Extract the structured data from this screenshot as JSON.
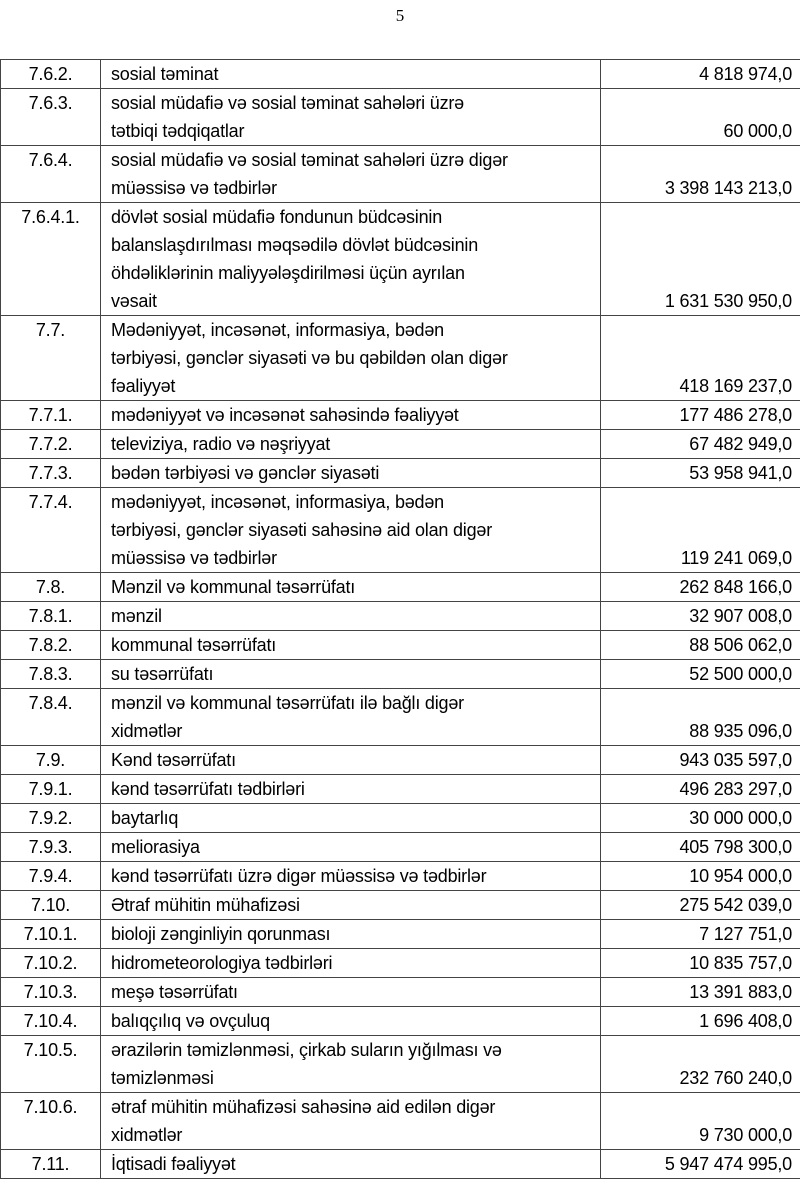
{
  "page_number": "5",
  "rows": [
    {
      "code": "7.6.2.",
      "text": "sosial təminat",
      "amount": "4 818 974,0"
    },
    {
      "code": "7.6.3.",
      "text": "sosial müdafiə və sosial təminat sahələri üzrə\ntətbiqi tədqiqatlar",
      "amount": "60 000,0"
    },
    {
      "code": "7.6.4.",
      "text": "sosial müdafiə və sosial təminat sahələri üzrə digər\nmüəssisə və tədbirlər",
      "amount": "3 398 143 213,0"
    },
    {
      "code": "7.6.4.1.",
      "text": "dövlət sosial müdafiə fondunun büdcəsinin\nbalanslaşdırılması məqsədilə dövlət büdcəsinin\nöhdəliklərinin maliyyələşdirilməsi üçün ayrılan\nvəsait",
      "amount": "1 631 530 950,0"
    },
    {
      "code": "7.7.",
      "text": "Mədəniyyət, incəsənət, informasiya, bədən\ntərbiyəsi, gənclər siyasəti və bu qəbildən olan digər\nfəaliyyət",
      "amount": "418 169 237,0"
    },
    {
      "code": "7.7.1.",
      "text": "mədəniyyət və incəsənət sahəsində fəaliyyət",
      "amount": "177 486 278,0"
    },
    {
      "code": "7.7.2.",
      "text": "televiziya, radio və nəşriyyat",
      "amount": "67 482 949,0"
    },
    {
      "code": "7.7.3.",
      "text": "bədən tərbiyəsi və gənclər siyasəti",
      "amount": "53 958 941,0"
    },
    {
      "code": "7.7.4.",
      "text": "mədəniyyət, incəsənət, informasiya, bədən\ntərbiyəsi, gənclər siyasəti sahəsinə aid olan digər\nmüəssisə və tədbirlər",
      "amount": "119 241 069,0"
    },
    {
      "code": "7.8.",
      "text": "Mənzil və kommunal təsərrüfatı",
      "amount": "262 848 166,0"
    },
    {
      "code": "7.8.1.",
      "text": "mənzil",
      "amount": "32 907 008,0"
    },
    {
      "code": "7.8.2.",
      "text": "kommunal təsərrüfatı",
      "amount": "88 506 062,0"
    },
    {
      "code": "7.8.3.",
      "text": "su təsərrüfatı",
      "amount": "52 500 000,0"
    },
    {
      "code": "7.8.4.",
      "text": "mənzil və kommunal təsərrüfatı ilə bağlı digər\nxidmətlər",
      "amount": "88 935 096,0"
    },
    {
      "code": "7.9.",
      "text": "Kənd təsərrüfatı",
      "amount": "943 035 597,0"
    },
    {
      "code": "7.9.1.",
      "text": "kənd təsərrüfatı tədbirləri",
      "amount": "496 283 297,0"
    },
    {
      "code": "7.9.2.",
      "text": "baytarlıq",
      "amount": "30 000 000,0"
    },
    {
      "code": "7.9.3.",
      "text": "meliorasiya",
      "amount": "405 798 300,0"
    },
    {
      "code": "7.9.4.",
      "text": "kənd təsərrüfatı üzrə digər müəssisə və tədbirlər",
      "amount": "10 954 000,0"
    },
    {
      "code": "7.10.",
      "text": "Ətraf mühitin mühafizəsi",
      "amount": "275 542 039,0"
    },
    {
      "code": "7.10.1.",
      "text": "bioloji zənginliyin qorunması",
      "amount": "7 127 751,0"
    },
    {
      "code": "7.10.2.",
      "text": "hidrometeorologiya tədbirləri",
      "amount": "10 835 757,0"
    },
    {
      "code": "7.10.3.",
      "text": "meşə təsərrüfatı",
      "amount": "13 391 883,0"
    },
    {
      "code": "7.10.4.",
      "text": "balıqçılıq və ovçuluq",
      "amount": "1 696 408,0"
    },
    {
      "code": "7.10.5.",
      "text": "ərazilərin təmizlənməsi, çirkab suların yığılması və\ntəmizlənməsi",
      "amount": "232 760 240,0"
    },
    {
      "code": "7.10.6.",
      "text": "ətraf mühitin mühafizəsi sahəsinə aid edilən digər\nxidmətlər",
      "amount": "9 730 000,0"
    },
    {
      "code": "7.11.",
      "text": "İqtisadi fəaliyyət",
      "amount": "5 947 474 995,0"
    }
  ]
}
